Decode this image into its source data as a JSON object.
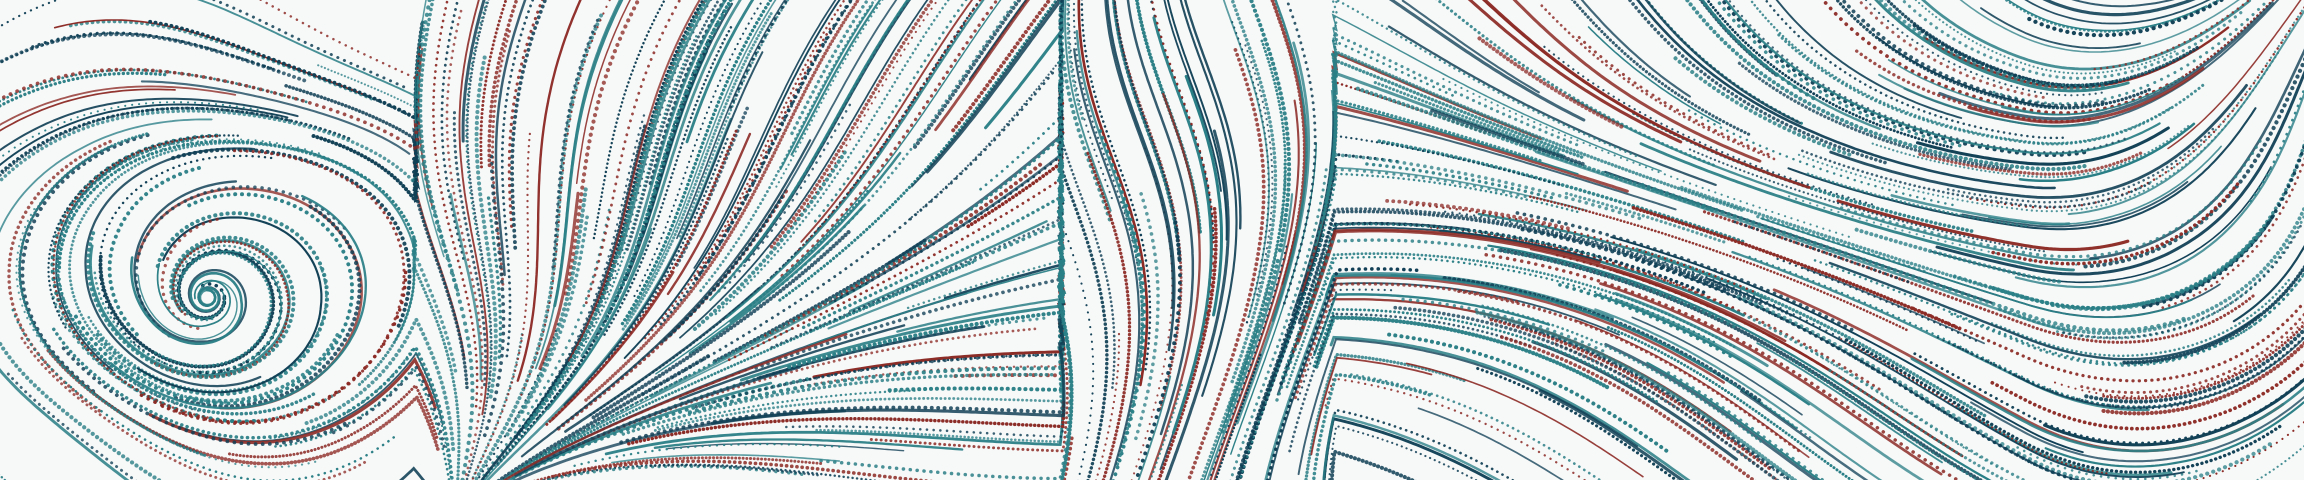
{
  "artwork": {
    "kind": "generative flow-field streamline art",
    "background": "#f7f8f8",
    "palette": {
      "navy": "#0f3f55",
      "teal": "#2a7f86",
      "red": "#8c2a25"
    },
    "line_styles": [
      "solid",
      "dotted"
    ],
    "visible_text": []
  }
}
